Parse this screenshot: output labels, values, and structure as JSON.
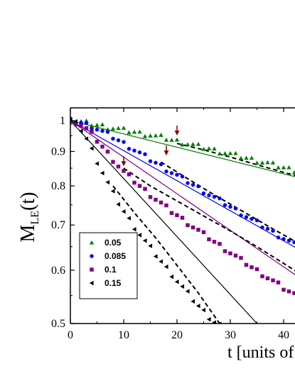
{
  "chart_data": {
    "type": "scatter",
    "title": "",
    "xlabel": "t [units of",
    "ylabel": "M",
    "ylabel_sub": "LE",
    "ylabel_suffix": "(t)",
    "y_scale": "log",
    "xlim": [
      0,
      45
    ],
    "ylim": [
      0.5,
      1.03
    ],
    "x_ticks": [
      0,
      10,
      20,
      30,
      40
    ],
    "x_tick_labels": [
      "0",
      "10",
      "20",
      "30",
      "40"
    ],
    "y_ticks": [
      0.5,
      0.6,
      0.7,
      0.8,
      0.9,
      1.0
    ],
    "y_tick_labels": [
      "0.5",
      "0.6",
      "0.7",
      "0.8",
      "0.9",
      "1"
    ],
    "legend_position": "bottom-left",
    "colors": {
      "s005": "#008000",
      "s0085": "#0000ff",
      "s01": "#800080",
      "s015": "#000000",
      "arrow": "#8b0000"
    },
    "series": [
      {
        "name": "0.05",
        "marker": "triangle-up",
        "color": "#008000",
        "fit_line": {
          "x": [
            0,
            45
          ],
          "y": [
            1.0,
            0.815
          ]
        },
        "dashed_curve": {
          "x": [
            20,
            25,
            30,
            35,
            40,
            45
          ],
          "y": [
            0.925,
            0.905,
            0.883,
            0.86,
            0.838,
            0.818
          ]
        },
        "arrow_at": {
          "x": 20,
          "y": 0.955
        },
        "points": {
          "x": [
            0,
            1,
            2,
            3,
            4,
            5,
            6,
            7,
            8,
            9,
            10,
            11,
            12,
            13,
            14,
            15,
            16,
            17,
            18,
            19,
            20,
            21,
            22,
            23,
            24,
            25,
            26,
            27,
            28,
            29,
            30,
            31,
            32,
            33,
            34,
            35,
            36,
            37,
            38,
            39,
            40,
            41,
            42,
            43,
            44
          ],
          "y": [
            1.0,
            0.998,
            0.995,
            0.992,
            0.988,
            0.985,
            0.982,
            0.978,
            0.975,
            0.972,
            0.968,
            0.965,
            0.962,
            0.958,
            0.955,
            0.952,
            0.948,
            0.945,
            0.941,
            0.936,
            0.932,
            0.928,
            0.924,
            0.92,
            0.916,
            0.912,
            0.909,
            0.904,
            0.9,
            0.896,
            0.892,
            0.888,
            0.884,
            0.88,
            0.876,
            0.872,
            0.868,
            0.865,
            0.86,
            0.856,
            0.852,
            0.848,
            0.844,
            0.84,
            0.836
          ]
        }
      },
      {
        "name": "0.085",
        "marker": "circle",
        "color": "#0000ff",
        "fit_line": {
          "x": [
            0,
            45
          ],
          "y": [
            1.0,
            0.63
          ]
        },
        "dashed_curve": {
          "x": [
            17,
            22,
            27,
            32,
            37,
            42,
            45
          ],
          "y": [
            0.868,
            0.82,
            0.776,
            0.736,
            0.698,
            0.663,
            0.645
          ]
        },
        "arrow_at": {
          "x": 18,
          "y": 0.892
        },
        "points": {
          "x": [
            0,
            1,
            2,
            3,
            4,
            5,
            6,
            7,
            8,
            9,
            10,
            11,
            12,
            13,
            14,
            15,
            16,
            17,
            18,
            19,
            20,
            21,
            22,
            23,
            24,
            25,
            26,
            27,
            28,
            29,
            30,
            31,
            32,
            33,
            34,
            35,
            36,
            37,
            38,
            39,
            40,
            41,
            42,
            43,
            44
          ],
          "y": [
            1.0,
            0.997,
            0.993,
            0.987,
            0.98,
            0.972,
            0.963,
            0.955,
            0.945,
            0.935,
            0.925,
            0.915,
            0.905,
            0.895,
            0.885,
            0.875,
            0.866,
            0.857,
            0.847,
            0.838,
            0.829,
            0.82,
            0.812,
            0.803,
            0.795,
            0.786,
            0.777,
            0.769,
            0.761,
            0.753,
            0.745,
            0.737,
            0.729,
            0.721,
            0.713,
            0.706,
            0.698,
            0.691,
            0.683,
            0.676,
            0.669,
            0.662,
            0.655,
            0.648,
            0.641
          ]
        }
      },
      {
        "name": "0.1",
        "marker": "square",
        "color": "#800080",
        "fit_line": {
          "x": [
            0,
            45
          ],
          "y": [
            1.0,
            0.57
          ]
        },
        "dashed_curve": {
          "x": [
            10,
            15,
            20,
            25,
            30,
            35,
            40,
            45
          ],
          "y": [
            0.85,
            0.8,
            0.76,
            0.722,
            0.686,
            0.65,
            0.614,
            0.58
          ]
        },
        "arrow_at": {
          "x": 10,
          "y": 0.86
        },
        "points": {
          "x": [
            0,
            1,
            2,
            3,
            4,
            5,
            6,
            7,
            8,
            9,
            10,
            11,
            12,
            13,
            14,
            15,
            16,
            17,
            18,
            19,
            20,
            21,
            22,
            23,
            24,
            25,
            26,
            27,
            28,
            29,
            30,
            31,
            32,
            33,
            34,
            35,
            36,
            37,
            38,
            39,
            40,
            41,
            42,
            43,
            44
          ],
          "y": [
            1.0,
            0.995,
            0.985,
            0.972,
            0.955,
            0.935,
            0.915,
            0.895,
            0.875,
            0.857,
            0.84,
            0.826,
            0.813,
            0.8,
            0.788,
            0.776,
            0.765,
            0.754,
            0.743,
            0.733,
            0.724,
            0.714,
            0.705,
            0.696,
            0.687,
            0.678,
            0.67,
            0.661,
            0.653,
            0.645,
            0.637,
            0.629,
            0.621,
            0.614,
            0.606,
            0.599,
            0.592,
            0.585,
            0.578,
            0.571,
            0.564,
            0.558,
            0.552,
            0.546,
            0.54
          ]
        }
      },
      {
        "name": "0.15",
        "marker": "triangle-left",
        "color": "#000000",
        "fit_line": {
          "x": [
            0,
            35
          ],
          "y": [
            1.0,
            0.5
          ]
        },
        "dashed_curve": {
          "x": [
            8,
            12,
            16,
            20,
            24,
            28
          ],
          "y": [
            0.8,
            0.73,
            0.67,
            0.61,
            0.555,
            0.5
          ]
        },
        "arrow_at": {
          "x": 10,
          "y": 0.65
        },
        "points": {
          "x": [
            0,
            1,
            2,
            3,
            4,
            5,
            6,
            7,
            8,
            9,
            10,
            11,
            12,
            13,
            14,
            15,
            16,
            17,
            18,
            19,
            20,
            21,
            22,
            23,
            24,
            25,
            26,
            27,
            28
          ],
          "y": [
            1.0,
            0.99,
            0.97,
            0.94,
            0.905,
            0.87,
            0.838,
            0.808,
            0.78,
            0.755,
            0.733,
            0.713,
            0.695,
            0.678,
            0.662,
            0.647,
            0.632,
            0.618,
            0.604,
            0.591,
            0.578,
            0.566,
            0.554,
            0.542,
            0.531,
            0.521,
            0.511,
            0.503,
            0.498
          ]
        }
      }
    ]
  }
}
